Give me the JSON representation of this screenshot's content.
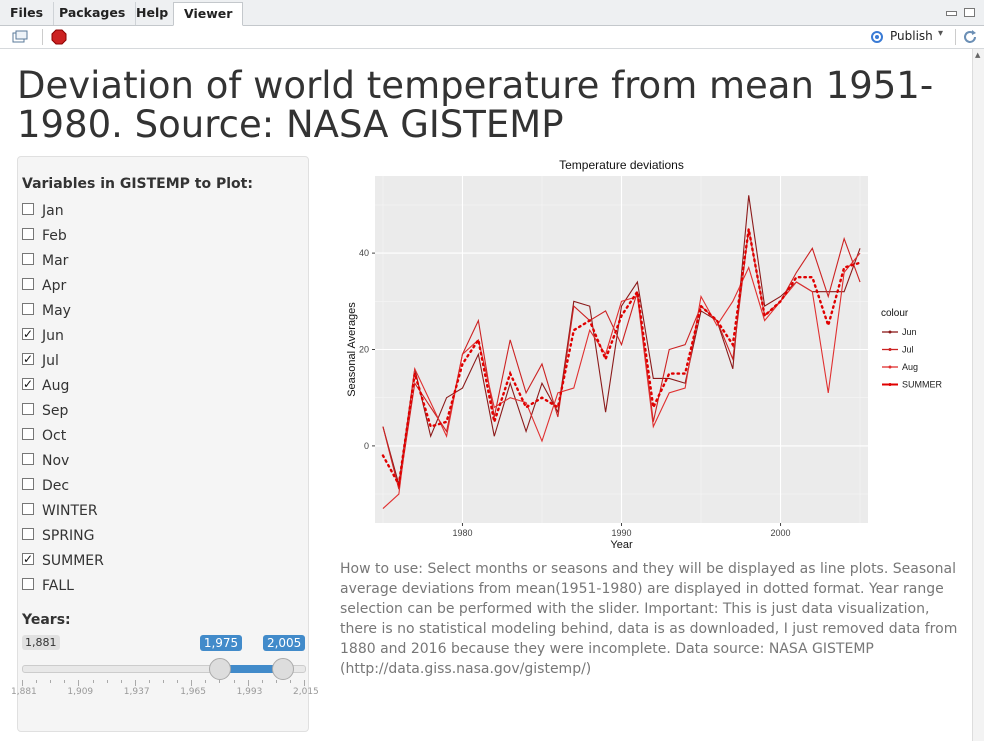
{
  "tabs": [
    {
      "label": "Files",
      "active": false
    },
    {
      "label": "Packages",
      "active": false
    },
    {
      "label": "Help",
      "active": false
    },
    {
      "label": "Viewer",
      "active": true
    }
  ],
  "toolbar": {
    "publish_label": "Publish"
  },
  "page": {
    "title": "Deviation of world temperature from mean 1951-1980. Source: NASA GISTEMP"
  },
  "sidebar": {
    "variables_label": "Variables in GISTEMP to Plot:",
    "checkboxes": [
      {
        "label": "Jan",
        "checked": false
      },
      {
        "label": "Feb",
        "checked": false
      },
      {
        "label": "Mar",
        "checked": false
      },
      {
        "label": "Apr",
        "checked": false
      },
      {
        "label": "May",
        "checked": false
      },
      {
        "label": "Jun",
        "checked": true
      },
      {
        "label": "Jul",
        "checked": true
      },
      {
        "label": "Aug",
        "checked": true
      },
      {
        "label": "Sep",
        "checked": false
      },
      {
        "label": "Oct",
        "checked": false
      },
      {
        "label": "Nov",
        "checked": false
      },
      {
        "label": "Dec",
        "checked": false
      },
      {
        "label": "WINTER",
        "checked": false
      },
      {
        "label": "SPRING",
        "checked": false
      },
      {
        "label": "SUMMER",
        "checked": true
      },
      {
        "label": "FALL",
        "checked": false
      }
    ],
    "years_label": "Years:",
    "slider": {
      "min": 1881,
      "max": 2015,
      "from": 1975,
      "to": 2005,
      "min_label": "1,881",
      "from_label": "1,975",
      "to_label": "2,005",
      "tick_labels": [
        "1,881",
        "1,909",
        "1,937",
        "1,965",
        "1,993",
        "2,015"
      ]
    }
  },
  "description": "How to use: Select months or seasons and they will be displayed as line plots. Seasonal average deviations from mean(1951-1980) are displayed in dotted format. Year range selection can be performed with the slider. Important: This is just data visualization, there is no statistical modeling behind, data is as downloaded, I just removed data from 1880 and 2016 because they were incomplete. Data source: NASA GISTEMP (http://data.giss.nasa.gov/gistemp/)",
  "colors": {
    "jun": "#8b1a1a",
    "jul": "#cc2222",
    "aug": "#e03030",
    "summer": "#e00000",
    "panel": "#ebebeb",
    "accent": "#428bca"
  },
  "chart_data": {
    "type": "line",
    "title": "Temperature deviations",
    "xlabel": "Year",
    "ylabel": "Seasonal Averages",
    "xlim": [
      1974.5,
      2005.5
    ],
    "ylim": [
      -16,
      56
    ],
    "x_ticks": [
      1980,
      1990,
      2000
    ],
    "y_ticks": [
      0,
      20,
      40
    ],
    "x": [
      1975,
      1976,
      1977,
      1978,
      1979,
      1980,
      1981,
      1982,
      1983,
      1984,
      1985,
      1986,
      1987,
      1988,
      1989,
      1990,
      1991,
      1992,
      1993,
      1994,
      1995,
      1996,
      1997,
      1998,
      1999,
      2000,
      2001,
      2002,
      2003,
      2004,
      2005
    ],
    "series": [
      {
        "name": "Jun",
        "style": "line",
        "values": [
          4,
          -8,
          16,
          2,
          10,
          12,
          19,
          2,
          13,
          3,
          13,
          7,
          30,
          29,
          7,
          29,
          34,
          14,
          14,
          13,
          28,
          26,
          16,
          52,
          29,
          31,
          34,
          32,
          32,
          32,
          41
        ]
      },
      {
        "name": "Jul",
        "style": "line",
        "values": [
          4,
          -9,
          13,
          8,
          3,
          19,
          26,
          6,
          22,
          11,
          17,
          6,
          29,
          26,
          28,
          21,
          32,
          5,
          20,
          21,
          29,
          26,
          18,
          45,
          27,
          30,
          36,
          41,
          31,
          43,
          34
        ]
      },
      {
        "name": "Aug",
        "style": "line",
        "values": [
          -13,
          -10,
          16,
          9,
          2,
          19,
          22,
          8,
          10,
          9,
          1,
          11,
          12,
          24,
          19,
          30,
          31,
          4,
          11,
          12,
          31,
          25,
          30,
          37,
          26,
          30,
          34,
          32,
          11,
          36,
          40
        ]
      },
      {
        "name": "SUMMER",
        "style": "dotted",
        "values": [
          -2,
          -8,
          15,
          4,
          5,
          17,
          22,
          5,
          15,
          8,
          10,
          8,
          24,
          26,
          18,
          27,
          32,
          8,
          15,
          15,
          29,
          26,
          21,
          45,
          27,
          30,
          35,
          35,
          25,
          37,
          38
        ]
      }
    ],
    "legend": {
      "title": "colour",
      "position": "right"
    },
    "grid": true
  }
}
